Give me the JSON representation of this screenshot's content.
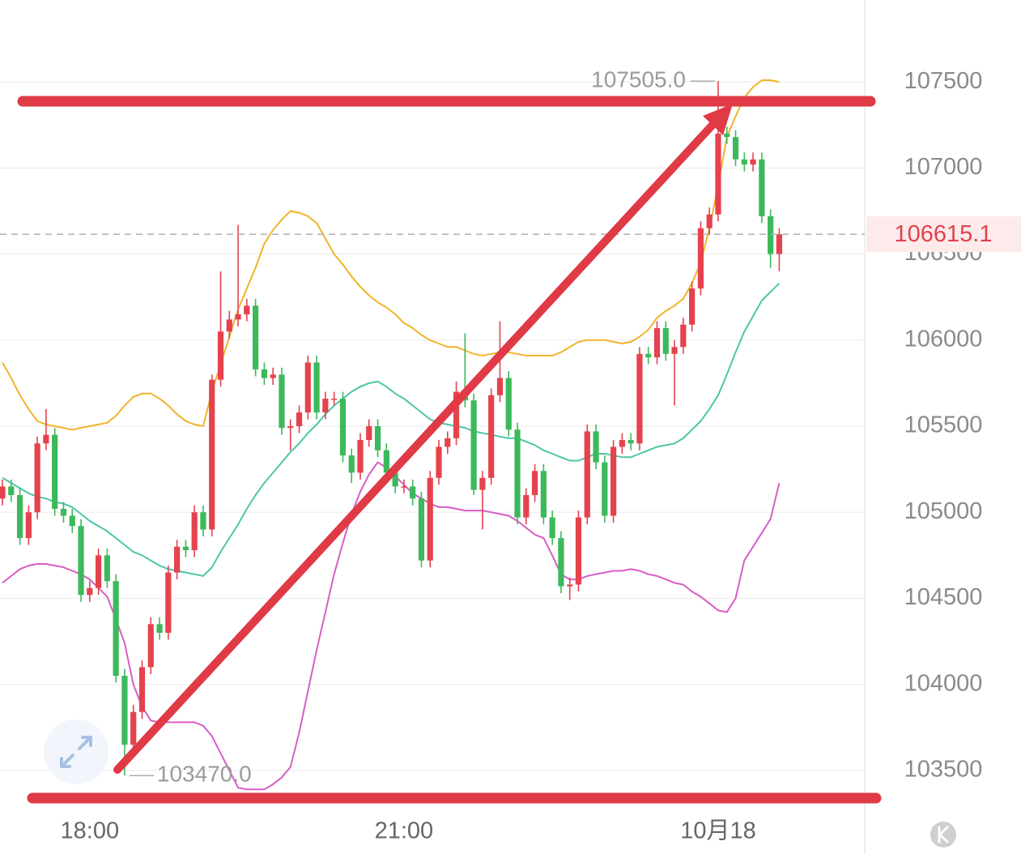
{
  "chart_data": {
    "type": "candlestick",
    "categories": [
      null,
      null,
      null,
      null,
      null,
      null,
      null,
      null,
      null,
      null,
      "18:00",
      null,
      null,
      null,
      null,
      null,
      null,
      null,
      null,
      null,
      null,
      null,
      null,
      null,
      null,
      null,
      null,
      null,
      null,
      null,
      null,
      null,
      null,
      null,
      null,
      null,
      null,
      null,
      null,
      null,
      null,
      null,
      null,
      null,
      null,
      null,
      "21:00",
      null,
      null,
      null,
      null,
      null,
      null,
      null,
      null,
      null,
      null,
      null,
      null,
      null,
      null,
      null,
      null,
      null,
      null,
      null,
      null,
      null,
      null,
      null,
      null,
      null,
      null,
      null,
      null,
      null,
      null,
      null,
      null,
      null,
      null,
      null,
      "10月18",
      null,
      null,
      null,
      null,
      null,
      null,
      null
    ],
    "open": [
      105080,
      105150,
      105100,
      104850,
      105000,
      105400,
      105450,
      105020,
      104980,
      104920,
      104520,
      104560,
      104750,
      104600,
      104050,
      103650,
      103840,
      104100,
      104350,
      104300,
      104650,
      104800,
      104780,
      105000,
      104900,
      105770,
      106050,
      106120,
      106150,
      106200,
      105830,
      105780,
      105800,
      105490,
      105500,
      105580,
      105870,
      105580,
      105660,
      105660,
      105330,
      105230,
      105420,
      105500,
      105360,
      105230,
      105150,
      105150,
      105080,
      104720,
      105200,
      105380,
      105430,
      105700,
      105650,
      105130,
      105200,
      105680,
      105780,
      105480,
      104970,
      105100,
      105240,
      104970,
      104850,
      104570,
      104580,
      104970,
      105470,
      105290,
      104980,
      105380,
      105420,
      105400,
      105920,
      105900,
      106070,
      105920,
      105960,
      106090,
      106300,
      106650,
      106730,
      107200,
      107180,
      107050,
      107020,
      107050,
      106720,
      106500
    ],
    "high": [
      105190,
      105190,
      105140,
      105040,
      105440,
      105600,
      105490,
      105060,
      105020,
      104960,
      104600,
      104790,
      104790,
      104640,
      104090,
      103880,
      104140,
      104390,
      104390,
      104690,
      104840,
      104840,
      105040,
      105040,
      105800,
      106400,
      106170,
      106670,
      106240,
      106240,
      105870,
      105840,
      105840,
      105540,
      105620,
      105910,
      105910,
      105700,
      105700,
      105700,
      105370,
      105460,
      105540,
      105540,
      105400,
      105270,
      105190,
      105190,
      105120,
      105240,
      105420,
      105470,
      105760,
      106040,
      105690,
      105240,
      105720,
      106110,
      105820,
      105520,
      105140,
      105280,
      105280,
      105010,
      104890,
      104620,
      105010,
      105510,
      105510,
      105330,
      105420,
      105460,
      105460,
      105960,
      105960,
      106110,
      106110,
      106000,
      106130,
      106340,
      106690,
      106770,
      107505,
      107240,
      107220,
      107090,
      107090,
      107090,
      106760,
      106650
    ],
    "low": [
      105040,
      105060,
      104810,
      104810,
      104960,
      105360,
      104980,
      104940,
      104880,
      104480,
      104480,
      104520,
      104560,
      104010,
      103470,
      103610,
      103800,
      104060,
      104260,
      104260,
      104610,
      104740,
      104740,
      104860,
      104860,
      105730,
      106010,
      106080,
      106110,
      105790,
      105740,
      105740,
      105450,
      105360,
      105460,
      105540,
      105540,
      105540,
      105620,
      105290,
      105170,
      105190,
      105380,
      105320,
      105190,
      105110,
      105110,
      105040,
      104680,
      104680,
      105160,
      105340,
      105390,
      105610,
      105100,
      104900,
      105160,
      105640,
      105440,
      104930,
      104930,
      105060,
      104930,
      104810,
      104530,
      104490,
      104540,
      104930,
      105250,
      104940,
      104940,
      105340,
      105360,
      105360,
      105860,
      105860,
      105880,
      105620,
      105920,
      106050,
      106260,
      106610,
      106690,
      107140,
      107010,
      106980,
      106980,
      106680,
      106420,
      106400
    ],
    "close": [
      105150,
      105100,
      104850,
      105000,
      105400,
      105450,
      105020,
      104980,
      104920,
      104520,
      104560,
      104750,
      104600,
      104050,
      103650,
      103840,
      104100,
      104350,
      104300,
      104650,
      104800,
      104780,
      105000,
      104900,
      105770,
      106050,
      106120,
      106150,
      106200,
      105830,
      105780,
      105800,
      105490,
      105500,
      105580,
      105870,
      105580,
      105660,
      105660,
      105330,
      105230,
      105420,
      105500,
      105360,
      105230,
      105150,
      105150,
      105080,
      104720,
      105200,
      105380,
      105430,
      105700,
      105650,
      105130,
      105200,
      105680,
      105780,
      105480,
      104970,
      105100,
      105240,
      104970,
      104850,
      104570,
      104580,
      104970,
      105470,
      105290,
      104980,
      105380,
      105420,
      105400,
      105920,
      105900,
      106070,
      105920,
      105960,
      106090,
      106300,
      106650,
      106730,
      107200,
      107180,
      107050,
      107020,
      107050,
      106720,
      106500,
      106615.1
    ],
    "up_color": "#e5424d",
    "down_color": "#3cb95a",
    "overlays": [
      {
        "color": "#f0b429",
        "values": [
          105870,
          105780,
          105680,
          105600,
          105530,
          105510,
          105500,
          105490,
          105480,
          105490,
          105500,
          105510,
          105520,
          105560,
          105620,
          105670,
          105690,
          105690,
          105660,
          105620,
          105570,
          105530,
          105510,
          105500,
          105700,
          105860,
          106020,
          106180,
          106300,
          106420,
          106560,
          106640,
          106700,
          106750,
          106740,
          106720,
          106680,
          106590,
          106500,
          106440,
          106370,
          106310,
          106260,
          106220,
          106190,
          106150,
          106100,
          106070,
          106030,
          106000,
          105980,
          105960,
          105960,
          105940,
          105920,
          105910,
          105920,
          105930,
          105930,
          105920,
          105910,
          105910,
          105910,
          105910,
          105930,
          105960,
          105990,
          106000,
          106000,
          106000,
          105990,
          105980,
          105990,
          106020,
          106060,
          106130,
          106170,
          106200,
          106240,
          106330,
          106450,
          106650,
          106900,
          107180,
          107300,
          107410,
          107470,
          107510,
          107510,
          107500
        ]
      },
      {
        "color": "#4cc6a6",
        "values": [
          105200,
          105170,
          105140,
          105110,
          105090,
          105080,
          105060,
          105050,
          105030,
          104990,
          104950,
          104920,
          104890,
          104850,
          104810,
          104770,
          104750,
          104720,
          104690,
          104670,
          104660,
          104650,
          104640,
          104630,
          104680,
          104770,
          104850,
          104930,
          105020,
          105100,
          105170,
          105230,
          105290,
          105350,
          105400,
          105460,
          105510,
          105570,
          105620,
          105660,
          105700,
          105730,
          105750,
          105760,
          105730,
          105690,
          105660,
          105620,
          105580,
          105540,
          105520,
          105510,
          105500,
          105490,
          105470,
          105460,
          105450,
          105440,
          105430,
          105430,
          105410,
          105390,
          105360,
          105340,
          105320,
          105300,
          105300,
          105320,
          105340,
          105340,
          105330,
          105320,
          105320,
          105340,
          105360,
          105380,
          105390,
          105400,
          105430,
          105480,
          105530,
          105600,
          105680,
          105800,
          105930,
          106050,
          106140,
          106230,
          106280,
          106330
        ]
      },
      {
        "color": "#d85cc6",
        "values": [
          104590,
          104630,
          104670,
          104690,
          104700,
          104700,
          104690,
          104680,
          104660,
          104640,
          104610,
          104560,
          104510,
          104380,
          104240,
          104000,
          103870,
          103790,
          103780,
          103780,
          103780,
          103780,
          103780,
          103760,
          103700,
          103600,
          103500,
          103400,
          103390,
          103390,
          103390,
          103420,
          103460,
          103520,
          103720,
          103960,
          104200,
          104420,
          104640,
          104820,
          104990,
          105120,
          105220,
          105290,
          105260,
          105210,
          105160,
          105110,
          105080,
          105050,
          105030,
          105030,
          105020,
          105010,
          105010,
          105010,
          105000,
          104990,
          104980,
          104950,
          104910,
          104870,
          104850,
          104750,
          104640,
          104610,
          104610,
          104630,
          104640,
          104650,
          104660,
          104660,
          104670,
          104660,
          104640,
          104630,
          104610,
          104590,
          104580,
          104540,
          104510,
          104470,
          104430,
          104420,
          104500,
          104720,
          104800,
          104880,
          104960,
          105170
        ]
      }
    ],
    "ylim": [
      103269,
      107976
    ],
    "yticks": [
      103500,
      104000,
      104500,
      105000,
      105500,
      106000,
      106500,
      107000,
      107500
    ],
    "grid": true,
    "last_price": 106615.1,
    "annotations": [
      {
        "value": 107505,
        "label": "107505.0"
      },
      {
        "value": 103470,
        "label": "103470.0"
      }
    ]
  }
}
